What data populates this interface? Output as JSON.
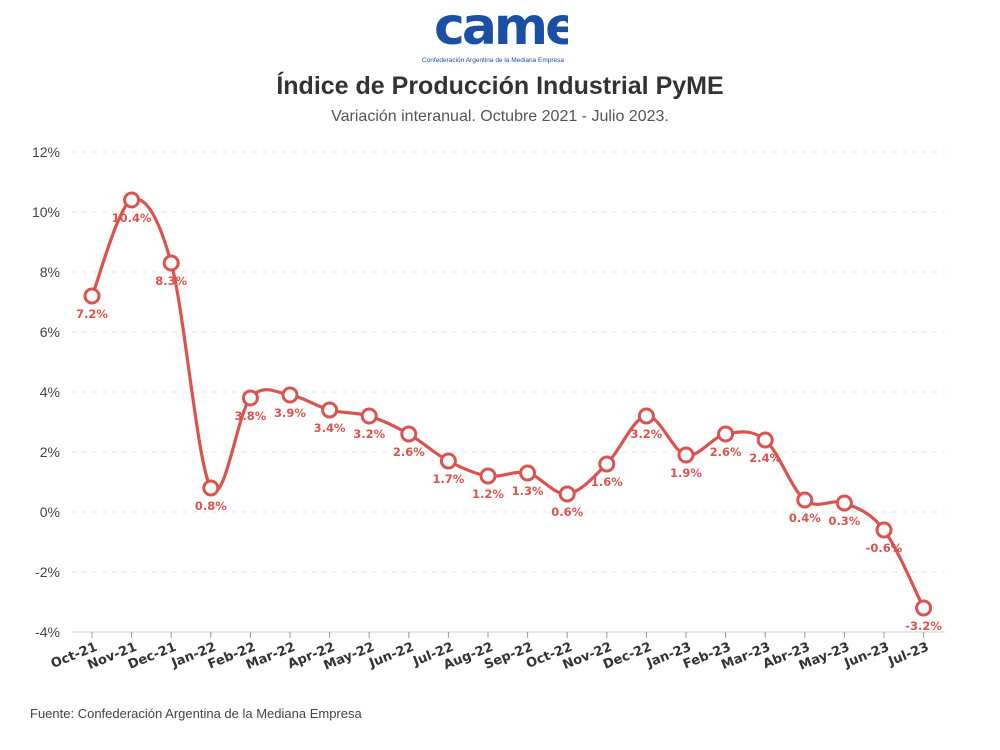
{
  "logo": {
    "text": "came",
    "subtitle": "Confederación Argentina de la Mediana Empresa",
    "color": "#1a4fa3"
  },
  "header": {
    "title": "Índice de Producción Industrial PyME",
    "subtitle": "Variación interanual. Octubre 2021 - Julio 2023."
  },
  "footer": {
    "source": "Fuente: Confederación Argentina de la Mediana Empresa"
  },
  "chart_data": {
    "type": "line",
    "title": "Índice de Producción Industrial PyME",
    "subtitle": "Variación interanual. Octubre 2021 - Julio 2023.",
    "xlabel": "",
    "ylabel": "",
    "categories": [
      "Oct-21",
      "Nov-21",
      "Dec-21",
      "Jan-22",
      "Feb-22",
      "Mar-22",
      "Apr-22",
      "May-22",
      "Jun-22",
      "Jul-22",
      "Aug-22",
      "Sep-22",
      "Oct-22",
      "Nov-22",
      "Dec-22",
      "Jan-23",
      "Feb-23",
      "Mar-23",
      "Abr-23",
      "May-23",
      "Jun-23",
      "Jul-23"
    ],
    "series": [
      {
        "values": [
          7.2,
          10.4,
          8.3,
          0.8,
          3.8,
          3.9,
          3.4,
          3.2,
          2.6,
          1.7,
          1.2,
          1.3,
          0.6,
          1.6,
          3.2,
          1.9,
          2.6,
          2.4,
          0.4,
          0.3,
          -0.6,
          -3.2
        ],
        "labels": [
          "7.2%",
          "10.4%",
          "8.3%",
          "0.8%",
          "3.8%",
          "3.9%",
          "3.4%",
          "3.2%",
          "2.6%",
          "1.7%",
          "1.2%",
          "1.3%",
          "0.6%",
          "1.6%",
          "3.2%",
          "1.9%",
          "2.6%",
          "2.4%",
          "0.4%",
          "0.3%",
          "-0.6%",
          "-3.2%"
        ],
        "color": "#d9534f"
      }
    ],
    "ylim": [
      -4,
      12
    ],
    "yticks": [
      "-4%",
      "-2%",
      "0%",
      "2%",
      "4%",
      "6%",
      "8%",
      "10%",
      "12%"
    ],
    "grid": true,
    "gridColor": "#e6e6e6",
    "legend": "none",
    "smooth": true
  }
}
